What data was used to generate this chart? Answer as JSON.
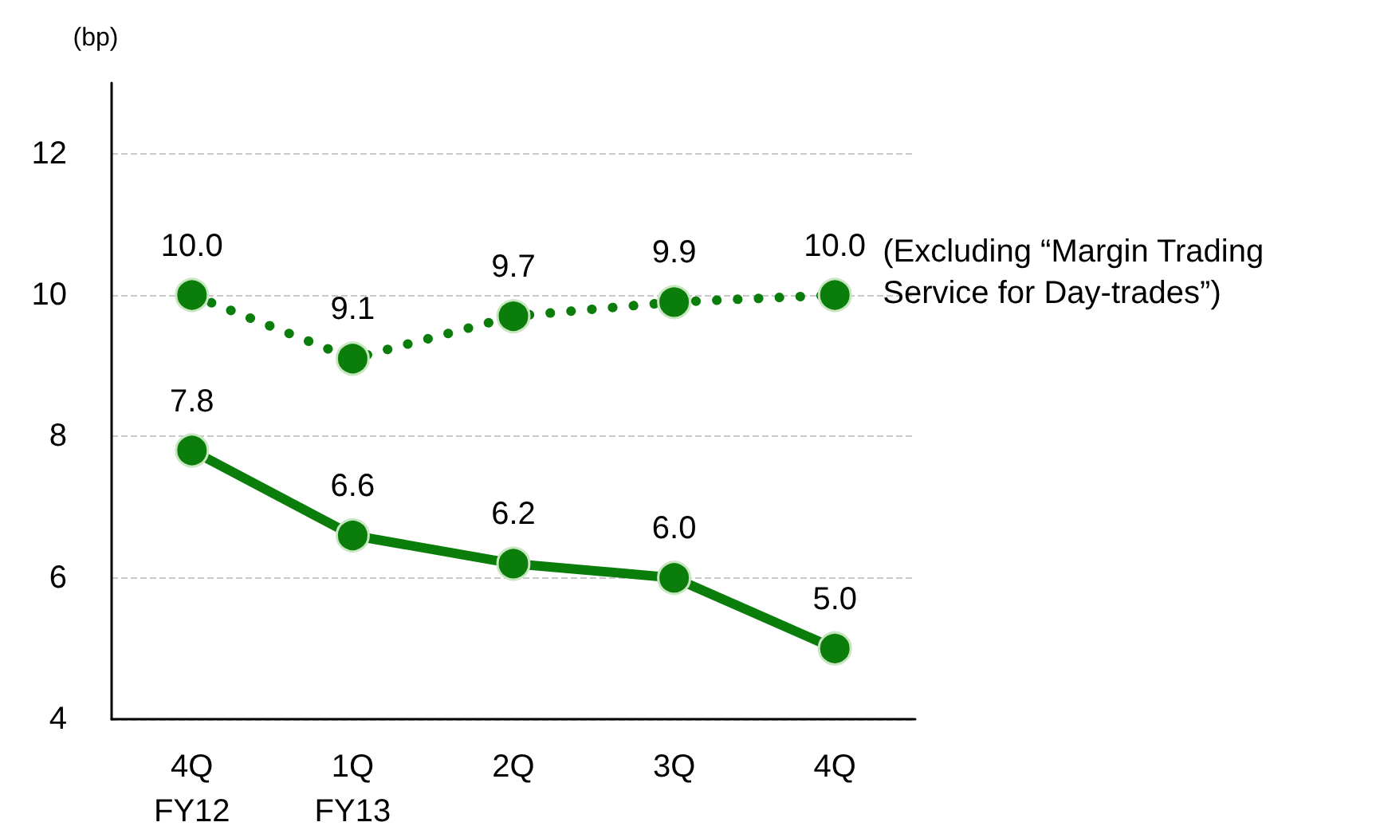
{
  "chart_data": {
    "type": "line",
    "ylabel": "(bp)",
    "categories": [
      "4Q\nFY12",
      "1Q\nFY13",
      "2Q",
      "3Q",
      "4Q"
    ],
    "series": [
      {
        "name": "(Excluding “Margin Trading Service for Day-trades”)",
        "color": "#0b7d0b",
        "line_style": "dotted",
        "values": [
          10.0,
          9.1,
          9.7,
          9.9,
          10.0
        ],
        "value_labels": [
          "10.0",
          "9.1",
          "9.7",
          "9.9",
          "10.0"
        ]
      },
      {
        "color": "#0b7d0b",
        "line_style": "solid",
        "values": [
          7.8,
          6.6,
          6.2,
          6.0,
          5.0
        ],
        "value_labels": [
          "7.8",
          "6.6",
          "6.2",
          "6.0",
          "5.0"
        ]
      }
    ],
    "ylim": [
      4,
      13
    ],
    "yticks": [
      4,
      6,
      8,
      10,
      12
    ],
    "grid": "y",
    "legend": false,
    "marker": "circle"
  }
}
